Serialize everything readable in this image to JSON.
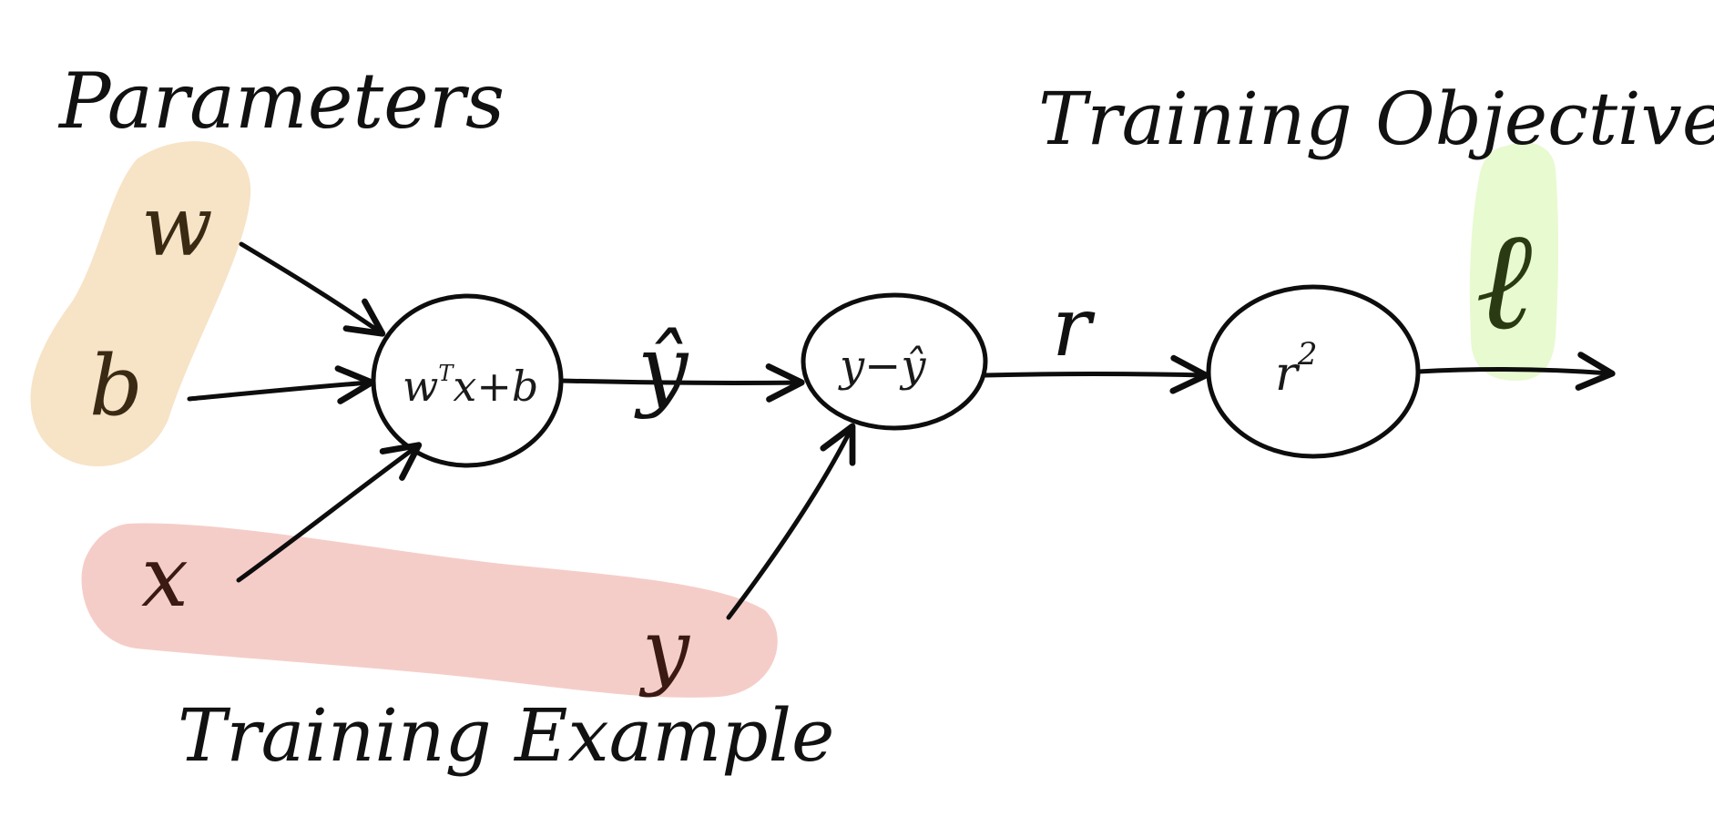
{
  "labels": {
    "parameters": "Parameters",
    "training_objective": "Training Objective",
    "training_example": "Training Example"
  },
  "inputs": {
    "w": "w",
    "b": "b",
    "x": "x",
    "y": "y"
  },
  "nodes": {
    "linear_base": "w",
    "linear_sup": "T",
    "linear_rest": "x+b",
    "residual": "y−ŷ",
    "square_base": "r",
    "square_sup": "2"
  },
  "edges": {
    "y_hat": "ŷ",
    "r": "r",
    "loss": "ℓ"
  },
  "colors": {
    "parameters_highlight": "#f7e3c6",
    "example_highlight": "#f5cdc8",
    "objective_highlight": "#e8fad0",
    "ink": "#0d0d0d",
    "param_ink": "#3a2a14",
    "example_ink": "#3a1a12",
    "loss_ink": "#2a3a12"
  }
}
